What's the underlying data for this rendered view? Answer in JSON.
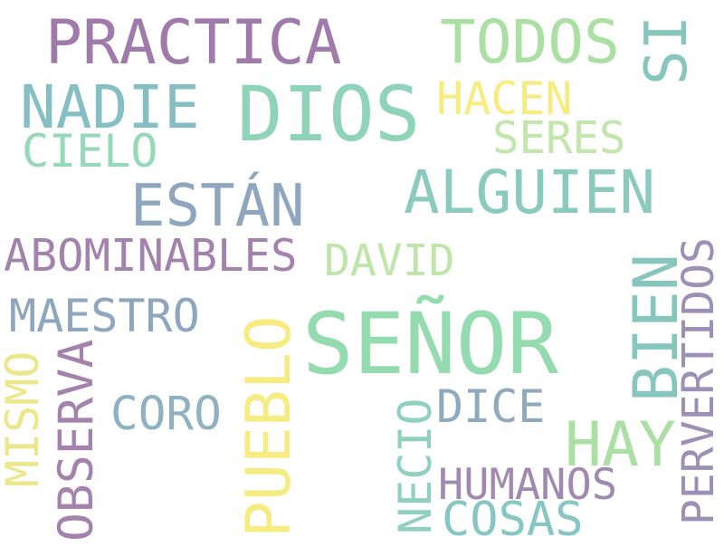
{
  "words": [
    {
      "text": "PRACTICA",
      "color": "#a07aab"
    },
    {
      "text": "TODOS",
      "color": "#abdfa3"
    },
    {
      "text": "SI",
      "color": "#86c6bd"
    },
    {
      "text": "NADIE",
      "color": "#86bfc3"
    },
    {
      "text": "DIOS",
      "color": "#8fd4b8"
    },
    {
      "text": "HACEN",
      "color": "#f6ec82"
    },
    {
      "text": "CIELO",
      "color": "#95d9b8"
    },
    {
      "text": "SERES",
      "color": "#c2e6ab"
    },
    {
      "text": "ESTÁN",
      "color": "#8fa6bf"
    },
    {
      "text": "ALGUIEN",
      "color": "#8acbbd"
    },
    {
      "text": "ABOMINABLES",
      "color": "#a382ad"
    },
    {
      "text": "DAVID",
      "color": "#bfe6a8"
    },
    {
      "text": "PERVERTIDOS",
      "color": "#9b90b5"
    },
    {
      "text": "MAESTRO",
      "color": "#8fa6bf"
    },
    {
      "text": "SEÑOR",
      "color": "#95dbb0"
    },
    {
      "text": "BIEN",
      "color": "#86c6bd"
    },
    {
      "text": "MISMO",
      "color": "#ede78c"
    },
    {
      "text": "OBSERVA",
      "color": "#a382ad"
    },
    {
      "text": "PUEBLO",
      "color": "#f6ec82"
    },
    {
      "text": "CORO",
      "color": "#8fb2c3"
    },
    {
      "text": "NECIO",
      "color": "#8fd1bd"
    },
    {
      "text": "DICE",
      "color": "#8fa9bf"
    },
    {
      "text": "HAY",
      "color": "#abdfa3"
    },
    {
      "text": "HUMANOS",
      "color": "#a08ab0"
    },
    {
      "text": "COSAS",
      "color": "#86c6c3"
    }
  ]
}
